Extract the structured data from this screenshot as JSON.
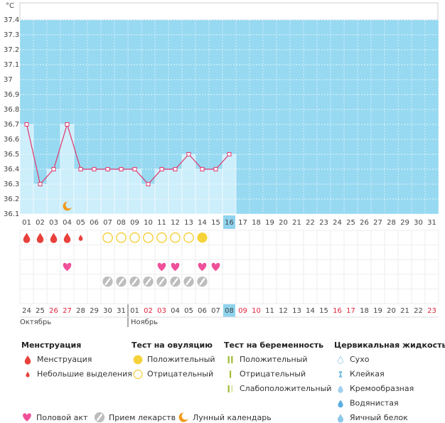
{
  "unit": "°C",
  "chart_data": {
    "type": "line",
    "categories": [
      "01",
      "02",
      "03",
      "04",
      "05",
      "06",
      "07",
      "08",
      "09",
      "10",
      "11",
      "12",
      "13",
      "14",
      "15",
      "16",
      "17",
      "18",
      "19",
      "20",
      "21",
      "22",
      "23",
      "24",
      "25",
      "26",
      "27",
      "28",
      "29",
      "30",
      "31"
    ],
    "values": [
      36.7,
      36.3,
      36.4,
      36.7,
      36.4,
      36.4,
      36.4,
      36.4,
      36.4,
      36.3,
      36.4,
      36.4,
      36.5,
      36.4,
      36.4,
      36.5,
      null,
      null,
      null,
      null,
      null,
      null,
      null,
      null,
      null,
      null,
      null,
      null,
      null,
      null,
      null
    ],
    "color": "#e0356b",
    "bar_color": "#cdeefb",
    "background": "#97d9f1",
    "ylim": [
      36.1,
      37.4
    ],
    "yticks": [
      36.1,
      36.2,
      36.3,
      36.4,
      36.5,
      36.6,
      36.7,
      36.8,
      36.9,
      37,
      37.1,
      37.2,
      37.3,
      37.4
    ],
    "grid": true,
    "annotations": [
      {
        "icon": "moon",
        "day": "04"
      }
    ]
  },
  "today_index": 15,
  "event_rows": [
    [
      {
        "icon": "drop",
        "days": [
          "01",
          "02",
          "03",
          "04"
        ]
      },
      {
        "icon": "small-drop",
        "days": [
          "05"
        ]
      },
      {
        "icon": "ovulation-negative",
        "days": [
          "07",
          "08",
          "09",
          "10",
          "11",
          "12",
          "13"
        ]
      },
      {
        "icon": "ovulation-positive",
        "days": [
          "14"
        ]
      }
    ],
    [],
    [
      {
        "icon": "heart",
        "days": [
          "04",
          "11",
          "12",
          "14",
          "15"
        ]
      }
    ],
    [
      {
        "icon": "pill",
        "days": [
          "07",
          "08",
          "09",
          "10",
          "11",
          "12",
          "13",
          "14"
        ]
      }
    ],
    []
  ],
  "calendar": {
    "dates": [
      "24",
      "25",
      "26",
      "27",
      "28",
      "29",
      "30",
      "31",
      "01",
      "02",
      "03",
      "04",
      "05",
      "06",
      "07",
      "08",
      "09",
      "10",
      "11",
      "12",
      "13",
      "14",
      "15",
      "16",
      "17",
      "18",
      "19",
      "20",
      "21",
      "22",
      "23"
    ],
    "weekend": [
      false,
      false,
      true,
      true,
      false,
      false,
      false,
      false,
      false,
      true,
      true,
      false,
      false,
      false,
      false,
      false,
      true,
      true,
      false,
      false,
      false,
      false,
      false,
      true,
      true,
      false,
      false,
      false,
      false,
      false,
      true
    ],
    "months": [
      "Октябрь",
      "Ноябрь"
    ]
  },
  "legend": {
    "groups": [
      {
        "title": "Менструация",
        "items": [
          {
            "icon": "drop",
            "label": "Менструация"
          },
          {
            "icon": "small-drop",
            "label": "Небольшие выделения"
          }
        ]
      },
      {
        "title": "Тест на овуляцию",
        "items": [
          {
            "icon": "ovulation-positive",
            "label": "Положительный"
          },
          {
            "icon": "ovulation-negative",
            "label": "Отрицательный"
          }
        ]
      },
      {
        "title": "Тест на беременность",
        "items": [
          {
            "icon": "preg-positive",
            "label": "Положительный"
          },
          {
            "icon": "preg-negative",
            "label": "Отрицательный"
          },
          {
            "icon": "preg-weak",
            "label": "Слабоположительный"
          }
        ]
      },
      {
        "title": "Цервикальная жидкость",
        "items": [
          {
            "icon": "dry",
            "label": "Сухо"
          },
          {
            "icon": "sticky",
            "label": "Клейкая"
          },
          {
            "icon": "creamy",
            "label": "Кремообразная"
          },
          {
            "icon": "watery",
            "label": "Водянистая"
          },
          {
            "icon": "eggwhite",
            "label": "Яичный белок"
          }
        ]
      }
    ],
    "bottom": [
      {
        "icon": "heart",
        "label": "Половой акт"
      },
      {
        "icon": "pill",
        "label": "Прием лекарств"
      },
      {
        "icon": "moon",
        "label": "Лунный календарь"
      }
    ]
  }
}
